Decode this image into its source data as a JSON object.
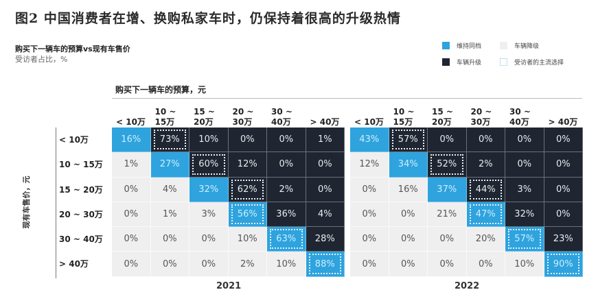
{
  "title": "图2 中国消费者在增、换购私家车时，仍保持着很高的升级热情",
  "subtitle": "购买下一辆车的预算vs现有车售价",
  "unit": "受访者占比，%",
  "legend": [
    {
      "label": "维持同档",
      "key": "keep",
      "color": "#2ea3de"
    },
    {
      "label": "车辆降级",
      "key": "down",
      "color": "#efefef"
    },
    {
      "label": "车辆升级",
      "key": "up",
      "color": "#1f2631"
    },
    {
      "label": "受访者的主流选择",
      "key": "main",
      "color": "#ffffff"
    }
  ],
  "x_axis_title": "购买下一辆车的预算，元",
  "y_axis_title": "现有车售价，元",
  "columns": [
    {
      "l1": "",
      "l2": "< 10万"
    },
    {
      "l1": "10 ~",
      "l2": "15万"
    },
    {
      "l1": "15 ~",
      "l2": "20万"
    },
    {
      "l1": "20 ~",
      "l2": "30万"
    },
    {
      "l1": "30 ~",
      "l2": "40万"
    },
    {
      "l1": "",
      "l2": "> 40万"
    }
  ],
  "rows": [
    "< 10万",
    "10 ~ 15万",
    "15 ~ 20万",
    "20 ~ 30万",
    "30 ~ 40万",
    "> 40万"
  ],
  "chart_data": {
    "type": "heatmap",
    "title": "图2 中国消费者在增、换购私家车时，仍保持着很高的升级热情",
    "subtitle": "购买下一辆车的预算vs现有车售价",
    "unit": "受访者占比，%",
    "xlabel": "购买下一辆车的预算，元",
    "ylabel": "现有车售价，元",
    "x_categories": [
      "< 10万",
      "10 ~ 15万",
      "15 ~ 20万",
      "20 ~ 30万",
      "30 ~ 40万",
      "> 40万"
    ],
    "y_categories": [
      "< 10万",
      "10 ~ 15万",
      "15 ~ 20万",
      "20 ~ 30万",
      "30 ~ 40万",
      "> 40万"
    ],
    "legend": [
      "维持同档",
      "车辆降级",
      "车辆升级",
      "受访者的主流选择"
    ],
    "panels": [
      {
        "year": "2021",
        "values": [
          [
            "16%",
            "73%",
            "10%",
            "0%",
            "0%",
            "1%"
          ],
          [
            "1%",
            "27%",
            "60%",
            "12%",
            "0%",
            "0%"
          ],
          [
            "0%",
            "4%",
            "32%",
            "62%",
            "2%",
            "0%"
          ],
          [
            "0%",
            "1%",
            "3%",
            "56%",
            "36%",
            "4%"
          ],
          [
            "0%",
            "0%",
            "0%",
            "10%",
            "63%",
            "28%"
          ],
          [
            "0%",
            "0%",
            "0%",
            "2%",
            "10%",
            "88%"
          ]
        ],
        "mainstream": [
          [
            0,
            1
          ],
          [
            1,
            2
          ],
          [
            2,
            3
          ],
          [
            3,
            3
          ],
          [
            4,
            4
          ],
          [
            5,
            5
          ]
        ]
      },
      {
        "year": "2022",
        "values": [
          [
            "43%",
            "57%",
            "0%",
            "0%",
            "0%",
            "0%"
          ],
          [
            "12%",
            "34%",
            "52%",
            "2%",
            "0%",
            "0%"
          ],
          [
            "0%",
            "16%",
            "37%",
            "44%",
            "3%",
            "0%"
          ],
          [
            "0%",
            "0%",
            "21%",
            "47%",
            "32%",
            "0%"
          ],
          [
            "0%",
            "0%",
            "0%",
            "20%",
            "57%",
            "23%"
          ],
          [
            "0%",
            "0%",
            "0%",
            "0%",
            "10%",
            "90%"
          ]
        ],
        "mainstream": [
          [
            0,
            1
          ],
          [
            1,
            2
          ],
          [
            2,
            3
          ],
          [
            3,
            3
          ],
          [
            4,
            4
          ],
          [
            5,
            5
          ]
        ]
      }
    ]
  }
}
